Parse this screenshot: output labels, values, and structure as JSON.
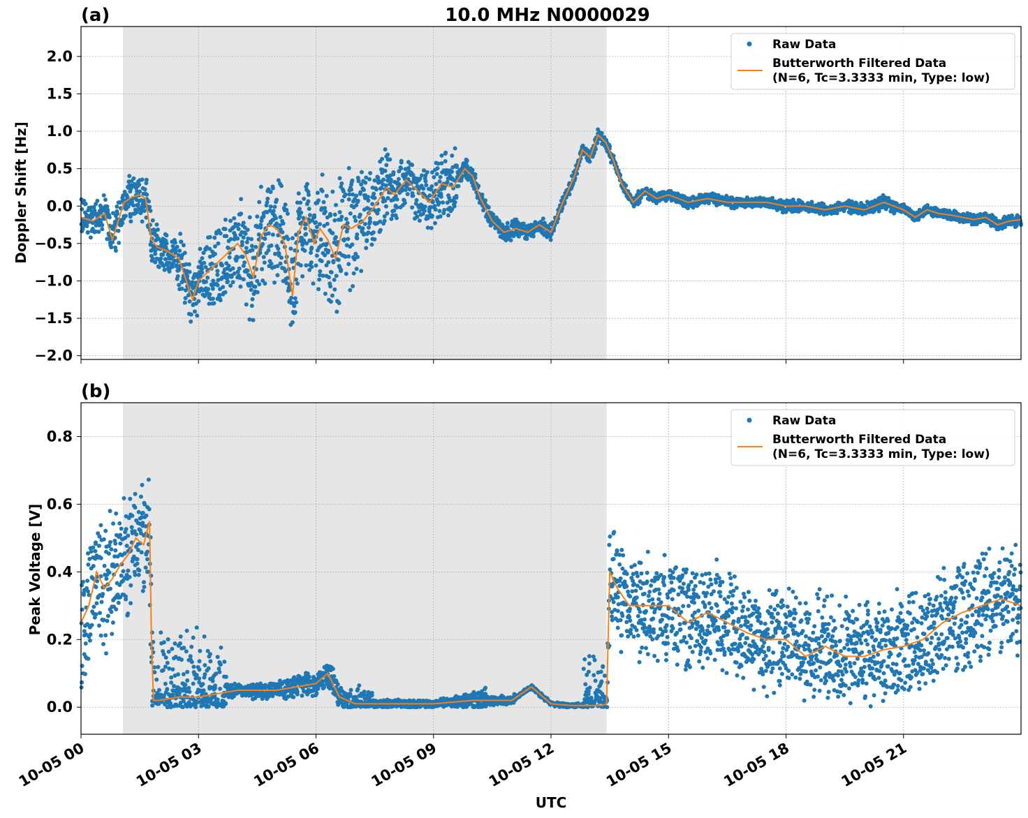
{
  "colors": {
    "raw": "#1f77b4",
    "filtered": "#ff7f0e",
    "shade": "#e6e6e6",
    "grid": "#b0b0b0"
  },
  "chart_data": [
    {
      "type": "scatter",
      "panel_label": "(a)",
      "title": "10.0 MHz N0000029",
      "xlabel": "",
      "ylabel": "Doppler Shift [Hz]",
      "x_unit": "hours UTC on 10-05",
      "xlim": [
        0,
        24
      ],
      "ylim": [
        -2.05,
        2.4
      ],
      "yticks": [
        "−2.0",
        "−1.5",
        "−1.0",
        "−0.5",
        "0.0",
        "0.5",
        "1.0",
        "1.5",
        "2.0"
      ],
      "ytick_values": [
        -2.0,
        -1.5,
        -1.0,
        -0.5,
        0.0,
        0.5,
        1.0,
        1.5,
        2.0
      ],
      "shaded_span": [
        1.07,
        13.42
      ],
      "grid": true,
      "legend": {
        "placement": "top-right",
        "raw": "Raw Data",
        "filtered_line1": "Butterworth Filtered Data",
        "filtered_line2": "(N=6, Tc=3.3333 min, Type: low)"
      },
      "series": [
        {
          "name": "Butterworth Filtered Data",
          "x": [
            0,
            0.3,
            0.6,
            0.8,
            0.95,
            1.1,
            1.3,
            1.5,
            1.65,
            1.8,
            1.95,
            2.2,
            2.5,
            2.75,
            2.85,
            3.0,
            3.2,
            3.4,
            3.6,
            3.8,
            4.0,
            4.2,
            4.4,
            4.6,
            4.8,
            5.0,
            5.2,
            5.4,
            5.55,
            5.75,
            5.95,
            6.1,
            6.3,
            6.5,
            6.7,
            6.9,
            7.2,
            7.5,
            7.8,
            8.0,
            8.3,
            8.6,
            8.9,
            9.2,
            9.5,
            9.8,
            10.0,
            10.2,
            10.5,
            10.8,
            11.1,
            11.4,
            11.7,
            12.0,
            12.3,
            12.6,
            12.8,
            13.0,
            13.2,
            13.4,
            13.6,
            13.8,
            14.1,
            14.4,
            14.7,
            15.0,
            15.5,
            16.0,
            16.5,
            17.0,
            17.5,
            18.0,
            18.5,
            19.0,
            19.5,
            20.0,
            20.5,
            21.0,
            21.3,
            21.6,
            21.9,
            22.2,
            22.5,
            22.8,
            23.1,
            23.4,
            23.7,
            24.0
          ],
          "y": [
            -0.15,
            -0.2,
            -0.1,
            -0.45,
            -0.2,
            0.05,
            0.12,
            0.15,
            0.1,
            -0.45,
            -0.55,
            -0.6,
            -0.7,
            -1.1,
            -1.25,
            -1.0,
            -0.9,
            -0.8,
            -0.7,
            -0.6,
            -0.5,
            -0.65,
            -0.95,
            -0.4,
            -0.25,
            -0.3,
            -0.5,
            -1.2,
            -0.35,
            -0.15,
            -0.5,
            -0.3,
            -0.45,
            -0.7,
            -0.25,
            -0.3,
            -0.2,
            0.0,
            0.25,
            0.15,
            0.35,
            0.2,
            0.05,
            0.3,
            0.25,
            0.5,
            0.4,
            0.1,
            -0.2,
            -0.35,
            -0.3,
            -0.35,
            -0.25,
            -0.35,
            0.05,
            0.4,
            0.75,
            0.65,
            0.95,
            0.85,
            0.6,
            0.3,
            0.05,
            0.2,
            0.1,
            0.15,
            0.05,
            0.1,
            0.05,
            0.05,
            0.05,
            0.0,
            0.0,
            -0.05,
            0.0,
            -0.05,
            0.05,
            -0.05,
            -0.15,
            -0.05,
            -0.1,
            -0.12,
            -0.15,
            -0.18,
            -0.15,
            -0.25,
            -0.2,
            -0.18
          ]
        },
        {
          "name": "Raw Data",
          "spread": [
            0.2,
            0.25,
            0.25,
            0.3,
            0.4,
            0.5,
            0.55,
            0.6,
            0.6,
            0.4,
            0.3,
            0.35,
            0.1,
            0.1,
            0.08,
            0.07,
            0.07,
            0.06,
            0.06,
            0.06,
            0.06,
            0.05,
            0.07,
            0.06,
            0.06,
            0.07,
            0.05,
            0.05,
            0.05,
            0.06
          ]
        }
      ]
    },
    {
      "type": "scatter",
      "panel_label": "(b)",
      "title": "",
      "xlabel": "UTC",
      "ylabel": "Peak Voltage [V]",
      "x_unit": "hours UTC on 10-05",
      "xlim": [
        0,
        24
      ],
      "ylim": [
        -0.08,
        0.9
      ],
      "yticks": [
        "0.0",
        "0.2",
        "0.4",
        "0.6",
        "0.8"
      ],
      "ytick_values": [
        0.0,
        0.2,
        0.4,
        0.6,
        0.8
      ],
      "xticks": [
        "10-05 00",
        "10-05 03",
        "10-05 06",
        "10-05 09",
        "10-05 12",
        "10-05 15",
        "10-05 18",
        "10-05 21"
      ],
      "xtick_values": [
        0,
        3,
        6,
        9,
        12,
        15,
        18,
        21
      ],
      "shaded_span": [
        1.07,
        13.42
      ],
      "grid": true,
      "legend": {
        "placement": "top-right",
        "raw": "Raw Data",
        "filtered_line1": "Butterworth Filtered Data",
        "filtered_line2": "(N=6, Tc=3.3333 min, Type: low)"
      },
      "series": [
        {
          "name": "Butterworth Filtered Data",
          "x": [
            0,
            0.2,
            0.4,
            0.6,
            0.8,
            1.0,
            1.2,
            1.4,
            1.6,
            1.75,
            1.8,
            1.85,
            2.0,
            2.5,
            3.0,
            3.5,
            4.0,
            4.5,
            5.0,
            5.5,
            6.0,
            6.3,
            6.6,
            7.0,
            8.0,
            9.0,
            10.0,
            11.0,
            11.5,
            11.8,
            12.0,
            12.5,
            13.0,
            13.3,
            13.42,
            13.5,
            13.7,
            14.0,
            14.5,
            15.0,
            15.5,
            16.0,
            16.5,
            17.0,
            17.5,
            18.0,
            18.5,
            19.0,
            19.5,
            20.0,
            20.5,
            21.0,
            21.5,
            22.0,
            22.5,
            23.0,
            23.5,
            24.0
          ],
          "y": [
            0.25,
            0.3,
            0.4,
            0.35,
            0.38,
            0.42,
            0.45,
            0.5,
            0.48,
            0.55,
            0.2,
            0.02,
            0.02,
            0.03,
            0.03,
            0.04,
            0.05,
            0.05,
            0.05,
            0.06,
            0.07,
            0.1,
            0.03,
            0.01,
            0.01,
            0.01,
            0.02,
            0.02,
            0.06,
            0.03,
            0.01,
            0.005,
            0.005,
            0.005,
            0.01,
            0.4,
            0.35,
            0.3,
            0.3,
            0.3,
            0.25,
            0.28,
            0.25,
            0.22,
            0.2,
            0.2,
            0.15,
            0.18,
            0.15,
            0.15,
            0.17,
            0.18,
            0.2,
            0.25,
            0.28,
            0.3,
            0.32,
            0.3
          ]
        },
        {
          "name": "Raw Data",
          "spread": [
            0.15,
            0.15,
            0.15,
            0.15,
            0.15,
            0.15,
            0.15,
            0.15,
            0.1,
            0.02,
            0.02,
            0.02,
            0.02,
            0.03,
            0.03,
            0.03,
            0.03,
            0.04,
            0.01,
            0.01,
            0.01,
            0.01,
            0.01,
            0.02,
            0.03,
            0.01,
            0.01,
            0.005,
            0.005,
            0.005,
            0.005,
            0.12,
            0.12,
            0.12,
            0.12,
            0.12,
            0.12,
            0.12,
            0.12,
            0.12,
            0.12,
            0.12,
            0.12,
            0.12,
            0.12,
            0.12,
            0.12,
            0.12,
            0.12,
            0.12,
            0.12,
            0.12,
            0.12,
            0.12,
            0.12,
            0.12,
            0.12,
            0.12
          ]
        }
      ]
    }
  ]
}
